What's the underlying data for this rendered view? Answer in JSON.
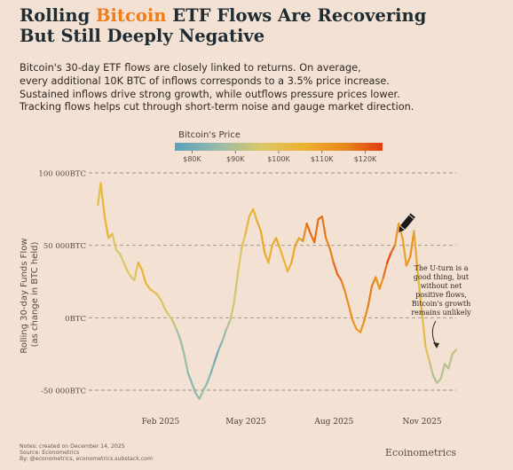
{
  "title_parts": {
    "pre": "Rolling ",
    "highlight": "Bitcoin",
    "post_line1": " ETF Flows Are Recovering",
    "line2": "But Still Deeply Negative"
  },
  "subtitle_lines": [
    "Bitcoin's 30-day ETF flows are closely linked to returns. On average,",
    "every additional 10K BTC of inflows corresponds to a 3.5% price increase.",
    "Sustained inflows drive strong growth, while outflows pressure prices lower.",
    "Tracking flows helps cut through short-term noise and gauge market direction."
  ],
  "colors": {
    "background": "#f3e2d3",
    "title": "#1f2b33",
    "highlight": "#ef7d1a",
    "grid": "#9a8f86",
    "price_scale": [
      "#5aa2bd",
      "#9bbcaa",
      "#d9c866",
      "#ecb230",
      "#e8871c",
      "#e23d10"
    ]
  },
  "legend": {
    "title": "Bitcoin's Price",
    "ticks": [
      "$80K",
      "$90K",
      "$100K",
      "$110K",
      "$120K"
    ],
    "price_min": 76000,
    "price_max": 124000
  },
  "annotation": {
    "lines": [
      "The U-turn is a",
      "good thing, but",
      "without net",
      "positive flows,",
      "Bitcoin's growth",
      "remains unlikely"
    ]
  },
  "icons": [
    "pencil-icon"
  ],
  "footer": {
    "notes": [
      "Notes: created on December 14, 2025",
      "Source: Econometrics",
      "By: @econometrics, econometrics.substack.com"
    ],
    "brand": "Ecoinometrics"
  },
  "chart_data": {
    "type": "line",
    "ylabel": "Rolling 30-day Funds Flow\n(as change in BTC held)",
    "xlabel": "",
    "ylim": [
      -55000,
      105000
    ],
    "y_ticks": [
      100000,
      50000,
      0,
      -50000
    ],
    "y_tick_labels": [
      "100 000BTC",
      "50 000BTC",
      "0BTC",
      "-50 000BTC"
    ],
    "x_ticks": [
      "2025-02-01",
      "2025-05-01",
      "2025-08-01",
      "2025-11-01"
    ],
    "x_tick_labels": [
      "Feb 2025",
      "May 2025",
      "Aug 2025",
      "Nov 2025"
    ],
    "xlim": [
      "2024-12-01",
      "2025-12-14"
    ],
    "grid": true,
    "color_by": "Bitcoin's Price",
    "series": [
      {
        "x": [
          "2024-12-05",
          "2024-12-08",
          "2024-12-12",
          "2024-12-16",
          "2024-12-20",
          "2024-12-24",
          "2024-12-28",
          "2025-01-01",
          "2025-01-05",
          "2025-01-09",
          "2025-01-12",
          "2025-01-16",
          "2025-01-20",
          "2025-01-24",
          "2025-01-28",
          "2025-02-01",
          "2025-02-05",
          "2025-02-09",
          "2025-02-13",
          "2025-02-17",
          "2025-02-21",
          "2025-02-25",
          "2025-03-01",
          "2025-03-05",
          "2025-03-09",
          "2025-03-13",
          "2025-03-17",
          "2025-03-21",
          "2025-03-25",
          "2025-03-29",
          "2025-04-02",
          "2025-04-06",
          "2025-04-10",
          "2025-04-14",
          "2025-04-18",
          "2025-04-22",
          "2025-04-26",
          "2025-04-30",
          "2025-05-04",
          "2025-05-08",
          "2025-05-12",
          "2025-05-16",
          "2025-05-20",
          "2025-05-24",
          "2025-05-28",
          "2025-06-01",
          "2025-06-05",
          "2025-06-09",
          "2025-06-13",
          "2025-06-17",
          "2025-06-21",
          "2025-06-25",
          "2025-06-29",
          "2025-07-03",
          "2025-07-07",
          "2025-07-11",
          "2025-07-15",
          "2025-07-19",
          "2025-07-23",
          "2025-07-27",
          "2025-07-31",
          "2025-08-04",
          "2025-08-08",
          "2025-08-12",
          "2025-08-16",
          "2025-08-20",
          "2025-08-24",
          "2025-08-28",
          "2025-09-01",
          "2025-09-05",
          "2025-09-09",
          "2025-09-13",
          "2025-09-17",
          "2025-09-21",
          "2025-09-25",
          "2025-09-29",
          "2025-10-03",
          "2025-10-07",
          "2025-10-11",
          "2025-10-15",
          "2025-10-19",
          "2025-10-23",
          "2025-10-27",
          "2025-10-31",
          "2025-11-04",
          "2025-11-08",
          "2025-11-12",
          "2025-11-16",
          "2025-11-20",
          "2025-11-24",
          "2025-11-28",
          "2025-12-02",
          "2025-12-06",
          "2025-12-10",
          "2025-12-14"
        ],
        "y": [
          78000,
          93000,
          70000,
          55000,
          58000,
          47000,
          44000,
          38000,
          32000,
          28000,
          26000,
          38000,
          33000,
          24000,
          20000,
          18000,
          16000,
          12000,
          6000,
          2000,
          -2000,
          -8000,
          -15000,
          -25000,
          -38000,
          -45000,
          -52000,
          -56000,
          -50000,
          -45000,
          -38000,
          -30000,
          -22000,
          -16000,
          -8000,
          -2000,
          10000,
          30000,
          48000,
          58000,
          70000,
          75000,
          67000,
          60000,
          45000,
          38000,
          50000,
          55000,
          48000,
          40000,
          32000,
          38000,
          50000,
          55000,
          53000,
          65000,
          58000,
          52000,
          68000,
          70000,
          55000,
          48000,
          38000,
          30000,
          26000,
          18000,
          8000,
          -2000,
          -8000,
          -10000,
          -2000,
          8000,
          22000,
          28000,
          20000,
          28000,
          38000,
          45000,
          50000,
          65000,
          55000,
          36000,
          42000,
          60000,
          30000,
          5000,
          -20000,
          -30000,
          -40000,
          -45000,
          -42000,
          -32000,
          -35000,
          -25000,
          -22000
        ],
        "price": [
          98000,
          101000,
          104000,
          106000,
          97000,
          95000,
          94000,
          94000,
          98000,
          94000,
          92000,
          104000,
          106000,
          104000,
          102000,
          101000,
          97000,
          96000,
          96000,
          95000,
          96000,
          88000,
          84000,
          87000,
          84000,
          83000,
          84000,
          85000,
          86000,
          83000,
          84000,
          78000,
          80000,
          84000,
          85000,
          92000,
          94000,
          95000,
          96000,
          101000,
          104000,
          103000,
          106000,
          108000,
          107000,
          105000,
          104000,
          108000,
          106000,
          104000,
          102000,
          107000,
          108000,
          109000,
          109000,
          118000,
          118000,
          117000,
          118000,
          118000,
          115000,
          114000,
          117000,
          120000,
          117000,
          113000,
          113000,
          112000,
          109000,
          111000,
          112000,
          115000,
          116000,
          115000,
          110000,
          113000,
          122000,
          124000,
          112000,
          111000,
          108000,
          110000,
          114000,
          110000,
          104000,
          102000,
          101000,
          94000,
          87000,
          88000,
          91000,
          88000,
          89000,
          92000,
          90000
        ]
      }
    ]
  }
}
